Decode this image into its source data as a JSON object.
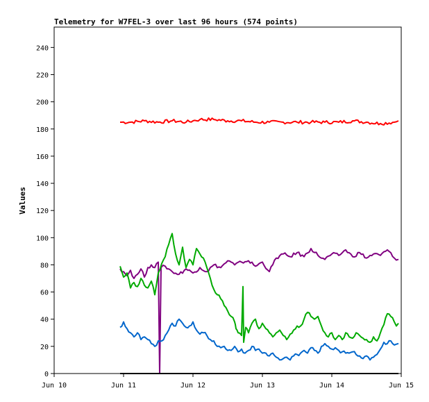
{
  "chart_data": {
    "type": "line",
    "title": "Telemetry for W7FEL-3 over last 96 hours (574 points)",
    "xlabel": "",
    "ylabel": "Values",
    "x_ticks": [
      "Jun 10",
      "Jun 11",
      "Jun 12",
      "Jun 13",
      "Jun 14",
      "Jun 15"
    ],
    "x_range": [
      "Jun 10",
      "Jun 15"
    ],
    "x_unit": "days since Jun 10 00:00",
    "ylim": [
      0,
      255
    ],
    "y_ticks": [
      0,
      20,
      40,
      60,
      80,
      100,
      120,
      140,
      160,
      180,
      200,
      220,
      240
    ],
    "grid": false,
    "legend": "none",
    "series": [
      {
        "color": "#ff0000",
        "points": [
          [
            0.95,
            185
          ],
          [
            1.1,
            185
          ],
          [
            1.3,
            186
          ],
          [
            1.5,
            185
          ],
          [
            1.7,
            186
          ],
          [
            1.9,
            185
          ],
          [
            2.0,
            186
          ],
          [
            2.1,
            187
          ],
          [
            2.3,
            187
          ],
          [
            2.5,
            186
          ],
          [
            2.7,
            186
          ],
          [
            2.9,
            185
          ],
          [
            3.1,
            185
          ],
          [
            3.3,
            185
          ],
          [
            3.5,
            185
          ],
          [
            3.7,
            185
          ],
          [
            3.9,
            185
          ],
          [
            4.1,
            185
          ],
          [
            4.3,
            186
          ],
          [
            4.5,
            185
          ],
          [
            4.7,
            184
          ],
          [
            4.9,
            185
          ],
          [
            4.96,
            186
          ]
        ]
      },
      {
        "color": "#800080",
        "points": [
          [
            0.95,
            77
          ],
          [
            1.0,
            75
          ],
          [
            1.05,
            72
          ],
          [
            1.1,
            76
          ],
          [
            1.15,
            70
          ],
          [
            1.2,
            73
          ],
          [
            1.25,
            77
          ],
          [
            1.3,
            71
          ],
          [
            1.35,
            78
          ],
          [
            1.4,
            80
          ],
          [
            1.45,
            78
          ],
          [
            1.5,
            82
          ],
          [
            1.52,
            0
          ],
          [
            1.54,
            78
          ],
          [
            1.6,
            79
          ],
          [
            1.7,
            75
          ],
          [
            1.8,
            73
          ],
          [
            1.9,
            77
          ],
          [
            2.0,
            74
          ],
          [
            2.1,
            78
          ],
          [
            2.2,
            75
          ],
          [
            2.3,
            80
          ],
          [
            2.4,
            78
          ],
          [
            2.5,
            83
          ],
          [
            2.6,
            80
          ],
          [
            2.7,
            82
          ],
          [
            2.8,
            83
          ],
          [
            2.9,
            79
          ],
          [
            3.0,
            82
          ],
          [
            3.1,
            75
          ],
          [
            3.2,
            85
          ],
          [
            3.3,
            88
          ],
          [
            3.4,
            86
          ],
          [
            3.5,
            89
          ],
          [
            3.6,
            86
          ],
          [
            3.7,
            92
          ],
          [
            3.8,
            87
          ],
          [
            3.9,
            84
          ],
          [
            4.0,
            88
          ],
          [
            4.1,
            87
          ],
          [
            4.2,
            91
          ],
          [
            4.3,
            86
          ],
          [
            4.4,
            89
          ],
          [
            4.5,
            85
          ],
          [
            4.6,
            88
          ],
          [
            4.7,
            87
          ],
          [
            4.8,
            91
          ],
          [
            4.9,
            85
          ],
          [
            4.96,
            84
          ]
        ]
      },
      {
        "color": "#00aa00",
        "points": [
          [
            0.95,
            79
          ],
          [
            1.0,
            71
          ],
          [
            1.05,
            74
          ],
          [
            1.1,
            63
          ],
          [
            1.15,
            67
          ],
          [
            1.2,
            64
          ],
          [
            1.25,
            70
          ],
          [
            1.3,
            65
          ],
          [
            1.35,
            63
          ],
          [
            1.4,
            68
          ],
          [
            1.45,
            58
          ],
          [
            1.5,
            74
          ],
          [
            1.55,
            81
          ],
          [
            1.6,
            86
          ],
          [
            1.65,
            95
          ],
          [
            1.7,
            103
          ],
          [
            1.75,
            88
          ],
          [
            1.8,
            80
          ],
          [
            1.85,
            93
          ],
          [
            1.9,
            78
          ],
          [
            1.95,
            84
          ],
          [
            2.0,
            80
          ],
          [
            2.05,
            92
          ],
          [
            2.1,
            88
          ],
          [
            2.15,
            85
          ],
          [
            2.2,
            78
          ],
          [
            2.25,
            70
          ],
          [
            2.3,
            62
          ],
          [
            2.35,
            58
          ],
          [
            2.4,
            55
          ],
          [
            2.45,
            50
          ],
          [
            2.5,
            46
          ],
          [
            2.55,
            42
          ],
          [
            2.6,
            38
          ],
          [
            2.62,
            33
          ],
          [
            2.65,
            30
          ],
          [
            2.7,
            28
          ],
          [
            2.72,
            64
          ],
          [
            2.73,
            23
          ],
          [
            2.76,
            34
          ],
          [
            2.8,
            30
          ],
          [
            2.85,
            37
          ],
          [
            2.9,
            40
          ],
          [
            2.95,
            33
          ],
          [
            3.0,
            37
          ],
          [
            3.05,
            33
          ],
          [
            3.1,
            30
          ],
          [
            3.15,
            27
          ],
          [
            3.2,
            30
          ],
          [
            3.25,
            32
          ],
          [
            3.3,
            28
          ],
          [
            3.35,
            25
          ],
          [
            3.4,
            29
          ],
          [
            3.45,
            32
          ],
          [
            3.5,
            35
          ],
          [
            3.55,
            35
          ],
          [
            3.6,
            40
          ],
          [
            3.65,
            45
          ],
          [
            3.7,
            42
          ],
          [
            3.75,
            40
          ],
          [
            3.8,
            42
          ],
          [
            3.85,
            35
          ],
          [
            3.9,
            30
          ],
          [
            3.95,
            27
          ],
          [
            4.0,
            30
          ],
          [
            4.05,
            25
          ],
          [
            4.1,
            28
          ],
          [
            4.15,
            25
          ],
          [
            4.2,
            30
          ],
          [
            4.25,
            27
          ],
          [
            4.3,
            26
          ],
          [
            4.35,
            30
          ],
          [
            4.4,
            28
          ],
          [
            4.45,
            26
          ],
          [
            4.5,
            25
          ],
          [
            4.55,
            23
          ],
          [
            4.6,
            27
          ],
          [
            4.65,
            24
          ],
          [
            4.7,
            30
          ],
          [
            4.75,
            36
          ],
          [
            4.8,
            44
          ],
          [
            4.85,
            42
          ],
          [
            4.9,
            38
          ],
          [
            4.93,
            35
          ],
          [
            4.96,
            37
          ]
        ]
      },
      {
        "color": "#0066cc",
        "points": [
          [
            0.95,
            34
          ],
          [
            1.0,
            38
          ],
          [
            1.05,
            33
          ],
          [
            1.1,
            30
          ],
          [
            1.15,
            27
          ],
          [
            1.2,
            30
          ],
          [
            1.25,
            25
          ],
          [
            1.3,
            27
          ],
          [
            1.35,
            25
          ],
          [
            1.4,
            22
          ],
          [
            1.45,
            20
          ],
          [
            1.5,
            24
          ],
          [
            1.55,
            24
          ],
          [
            1.6,
            28
          ],
          [
            1.65,
            32
          ],
          [
            1.7,
            37
          ],
          [
            1.75,
            35
          ],
          [
            1.8,
            40
          ],
          [
            1.85,
            37
          ],
          [
            1.9,
            34
          ],
          [
            1.95,
            35
          ],
          [
            2.0,
            38
          ],
          [
            2.05,
            32
          ],
          [
            2.1,
            29
          ],
          [
            2.15,
            30
          ],
          [
            2.2,
            28
          ],
          [
            2.25,
            25
          ],
          [
            2.3,
            24
          ],
          [
            2.35,
            20
          ],
          [
            2.4,
            19
          ],
          [
            2.45,
            20
          ],
          [
            2.5,
            17
          ],
          [
            2.55,
            17
          ],
          [
            2.6,
            20
          ],
          [
            2.65,
            16
          ],
          [
            2.7,
            18
          ],
          [
            2.75,
            15
          ],
          [
            2.8,
            17
          ],
          [
            2.85,
            20
          ],
          [
            2.9,
            17
          ],
          [
            2.95,
            18
          ],
          [
            3.0,
            15
          ],
          [
            3.05,
            15
          ],
          [
            3.1,
            13
          ],
          [
            3.15,
            15
          ],
          [
            3.2,
            12
          ],
          [
            3.25,
            10
          ],
          [
            3.3,
            11
          ],
          [
            3.35,
            12
          ],
          [
            3.4,
            10
          ],
          [
            3.45,
            13
          ],
          [
            3.5,
            14
          ],
          [
            3.55,
            15
          ],
          [
            3.6,
            17
          ],
          [
            3.65,
            15
          ],
          [
            3.7,
            19
          ],
          [
            3.75,
            17
          ],
          [
            3.8,
            15
          ],
          [
            3.85,
            20
          ],
          [
            3.9,
            22
          ],
          [
            3.95,
            20
          ],
          [
            4.0,
            18
          ],
          [
            4.05,
            19
          ],
          [
            4.1,
            17
          ],
          [
            4.15,
            16
          ],
          [
            4.2,
            15
          ],
          [
            4.25,
            15
          ],
          [
            4.3,
            16
          ],
          [
            4.35,
            14
          ],
          [
            4.4,
            13
          ],
          [
            4.45,
            11
          ],
          [
            4.5,
            13
          ],
          [
            4.55,
            10
          ],
          [
            4.6,
            12
          ],
          [
            4.65,
            14
          ],
          [
            4.7,
            18
          ],
          [
            4.75,
            23
          ],
          [
            4.8,
            22
          ],
          [
            4.85,
            24
          ],
          [
            4.9,
            21
          ],
          [
            4.96,
            22
          ]
        ]
      },
      {
        "color": "#000000",
        "points": [
          [
            0.95,
            0
          ],
          [
            4.96,
            0
          ]
        ]
      }
    ]
  }
}
